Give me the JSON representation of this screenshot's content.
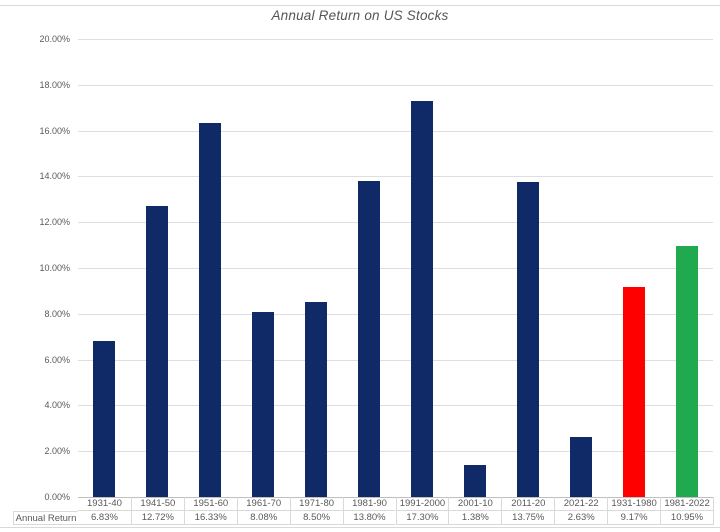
{
  "title": "Annual Return on US Stocks",
  "table": {
    "row_label": "Annual Return"
  },
  "colors": {
    "bar_default": "#0f2a66",
    "bar_highlight_red": "#fe0000",
    "bar_highlight_green": "#21a94f",
    "gridline": "#dedede",
    "axis_line": "#bfbfbf",
    "text": "#595959"
  },
  "chart_data": {
    "type": "bar",
    "title": "Annual Return on US Stocks",
    "categories": [
      "1931-40",
      "1941-50",
      "1951-60",
      "1961-70",
      "1971-80",
      "1981-90",
      "1991-2000",
      "2001-10",
      "2011-20",
      "2021-22",
      "1931-1980",
      "1981-2022"
    ],
    "values": [
      6.83,
      12.72,
      16.33,
      8.08,
      8.5,
      13.8,
      17.3,
      1.38,
      13.75,
      2.63,
      9.17,
      10.95
    ],
    "value_labels": [
      "6.83%",
      "12.72%",
      "16.33%",
      "8.08%",
      "8.50%",
      "13.80%",
      "17.30%",
      "1.38%",
      "13.75%",
      "2.63%",
      "9.17%",
      "10.95%"
    ],
    "bar_colors": [
      "#0f2a66",
      "#0f2a66",
      "#0f2a66",
      "#0f2a66",
      "#0f2a66",
      "#0f2a66",
      "#0f2a66",
      "#0f2a66",
      "#0f2a66",
      "#0f2a66",
      "#fe0000",
      "#21a94f"
    ],
    "series_label": "Annual Return",
    "xlabel": "",
    "ylabel": "",
    "ylim": [
      0,
      20
    ],
    "ytick_step": 2,
    "ytick_labels": [
      "0.00%",
      "2.00%",
      "4.00%",
      "6.00%",
      "8.00%",
      "10.00%",
      "12.00%",
      "14.00%",
      "16.00%",
      "18.00%",
      "20.00%"
    ],
    "grid": true,
    "legend_position": "none",
    "data_table_below_axis": true
  }
}
